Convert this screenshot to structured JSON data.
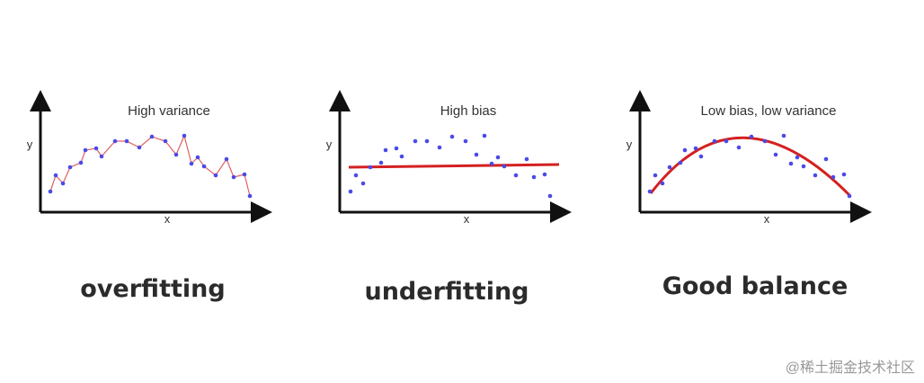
{
  "panels": [
    {
      "title": "High variance",
      "y_label": "y",
      "x_label": "x",
      "caption": "overfitting"
    },
    {
      "title": "High bias",
      "y_label": "y",
      "x_label": "x",
      "caption": "underfitting"
    },
    {
      "title": "Low bias, low variance",
      "y_label": "y",
      "x_label": "x",
      "caption": "Good balance"
    }
  ],
  "watermark": "@稀土掘金技术社区"
}
